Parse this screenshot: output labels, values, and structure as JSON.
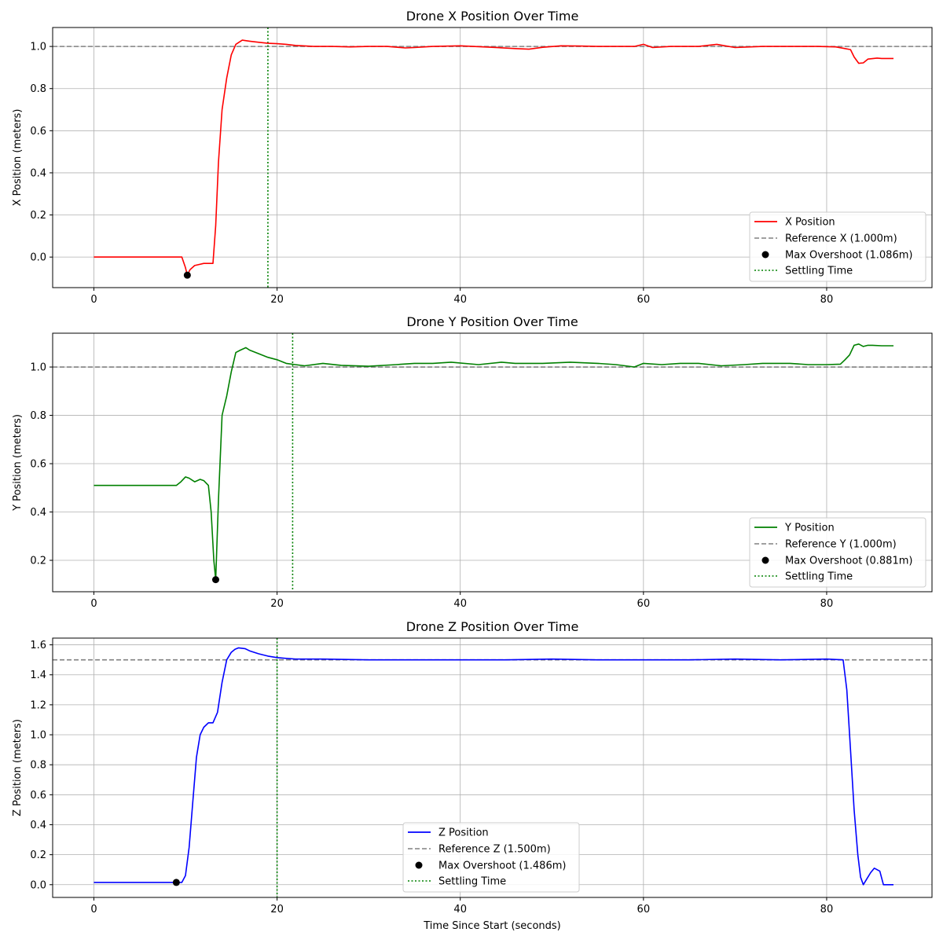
{
  "chart_data": [
    {
      "type": "line",
      "title": "Drone X Position Over Time",
      "ylabel": "X Position (meters)",
      "xlabel": "",
      "xlim": [
        -4.5,
        91.5
      ],
      "ylim": [
        -0.145,
        1.09
      ],
      "xticks": [
        0,
        20,
        40,
        60,
        80
      ],
      "yticks": [
        0.0,
        0.2,
        0.4,
        0.6,
        0.8,
        1.0
      ],
      "grid": true,
      "color": "#ff0000",
      "series_name": "X Position",
      "x": [
        0,
        9.0,
        9.6,
        10.0,
        10.2,
        10.5,
        11.0,
        12.0,
        13.0,
        13.3,
        13.6,
        14.0,
        14.5,
        15.0,
        15.5,
        16.2,
        17.0,
        18.0,
        19.0,
        20.0,
        21.0,
        22.0,
        24.0,
        26.0,
        28.0,
        30.0,
        32.0,
        34.0,
        35.0,
        37.0,
        40.0,
        43.0,
        46.0,
        47.5,
        49.0,
        51.0,
        53.0,
        55.0,
        57.0,
        59.0,
        60.0,
        61.0,
        63.0,
        66.0,
        68.0,
        70.0,
        73.0,
        76.0,
        79.0,
        81.0,
        82.0,
        82.6,
        83.0,
        83.5,
        84.0,
        84.5,
        85.5,
        86.0,
        87.3
      ],
      "values": [
        0.0,
        0.0,
        0.0,
        -0.05,
        -0.086,
        -0.06,
        -0.04,
        -0.03,
        -0.03,
        0.15,
        0.45,
        0.7,
        0.85,
        0.96,
        1.01,
        1.03,
        1.025,
        1.02,
        1.015,
        1.013,
        1.01,
        1.005,
        1.0,
        1.0,
        0.998,
        1.0,
        1.0,
        0.993,
        0.995,
        1.0,
        1.003,
        0.997,
        0.99,
        0.987,
        0.996,
        1.003,
        1.002,
        1.0,
        1.0,
        1.0,
        1.01,
        0.995,
        1.0,
        1.0,
        1.01,
        0.995,
        1.0,
        1.0,
        1.0,
        0.998,
        0.99,
        0.985,
        0.95,
        0.92,
        0.922,
        0.94,
        0.945,
        0.943,
        0.943
      ],
      "reference_y": 1.0,
      "settling_time": 19.0,
      "overshoot_point": [
        10.2,
        -0.086
      ],
      "legend_position": "lower right",
      "legend": [
        "X Position",
        "Reference X (1.000m)",
        "Max Overshoot (1.086m)",
        "Settling Time"
      ]
    },
    {
      "type": "line",
      "title": "Drone Y Position Over Time",
      "ylabel": "Y Position (meters)",
      "xlabel": "",
      "xlim": [
        -4.5,
        91.5
      ],
      "ylim": [
        0.07,
        1.14
      ],
      "xticks": [
        0,
        20,
        40,
        60,
        80
      ],
      "yticks": [
        0.2,
        0.4,
        0.6,
        0.8,
        1.0
      ],
      "grid": true,
      "color": "#008000",
      "series_name": "Y Position",
      "x": [
        0,
        9.0,
        9.5,
        10.0,
        10.4,
        11.0,
        11.6,
        12.0,
        12.5,
        12.8,
        13.1,
        13.3,
        13.6,
        14.0,
        14.5,
        15.0,
        15.5,
        16.0,
        16.6,
        17.0,
        18.0,
        19.0,
        20.0,
        21.0,
        22.0,
        23.0,
        25.0,
        27.0,
        30.0,
        33.0,
        35.0,
        37.0,
        39.0,
        42.0,
        44.5,
        46.0,
        49.0,
        52.0,
        55.0,
        57.0,
        59.0,
        60.0,
        62.0,
        64.0,
        66.0,
        68.5,
        71.0,
        73.0,
        76.0,
        78.0,
        80.0,
        81.5,
        82.0,
        82.5,
        83.0,
        83.5,
        84.0,
        84.5,
        85.0,
        86.0,
        87.3
      ],
      "values": [
        0.51,
        0.51,
        0.525,
        0.545,
        0.54,
        0.525,
        0.535,
        0.53,
        0.51,
        0.4,
        0.2,
        0.12,
        0.45,
        0.8,
        0.88,
        0.98,
        1.06,
        1.07,
        1.08,
        1.07,
        1.055,
        1.04,
        1.03,
        1.015,
        1.01,
        1.005,
        1.015,
        1.007,
        1.003,
        1.01,
        1.015,
        1.015,
        1.02,
        1.01,
        1.02,
        1.015,
        1.015,
        1.02,
        1.015,
        1.01,
        1.0,
        1.015,
        1.01,
        1.015,
        1.015,
        1.005,
        1.01,
        1.015,
        1.015,
        1.01,
        1.01,
        1.012,
        1.03,
        1.05,
        1.09,
        1.095,
        1.085,
        1.09,
        1.09,
        1.088,
        1.088
      ],
      "reference_y": 1.0,
      "settling_time": 21.7,
      "overshoot_point": [
        13.3,
        0.12
      ],
      "legend_position": "lower right",
      "legend": [
        "Y Position",
        "Reference Y (1.000m)",
        "Max Overshoot (0.881m)",
        "Settling Time"
      ]
    },
    {
      "type": "line",
      "title": "Drone Z Position Over Time",
      "ylabel": "Z Position (meters)",
      "xlabel": "Time Since Start (seconds)",
      "xlim": [
        -4.5,
        91.5
      ],
      "ylim": [
        -0.085,
        1.645
      ],
      "xticks": [
        0,
        20,
        40,
        60,
        80
      ],
      "yticks": [
        0.0,
        0.2,
        0.4,
        0.6,
        0.8,
        1.0,
        1.2,
        1.4,
        1.6
      ],
      "grid": true,
      "color": "#0000ff",
      "series_name": "Z Position",
      "x": [
        0,
        9.0,
        9.6,
        10.0,
        10.4,
        10.8,
        11.2,
        11.6,
        12.0,
        12.5,
        13.0,
        13.5,
        14.0,
        14.5,
        15.0,
        15.4,
        15.8,
        16.5,
        17.0,
        18.0,
        19.0,
        20.0,
        21.0,
        22.0,
        25.0,
        30.0,
        35.0,
        40.0,
        45.0,
        50.0,
        55.0,
        60.0,
        65.0,
        70.0,
        75.0,
        80.0,
        81.8,
        82.2,
        82.6,
        83.0,
        83.4,
        83.7,
        84.0,
        84.4,
        84.8,
        85.2,
        85.5,
        85.8,
        86.2,
        87.3
      ],
      "values": [
        0.015,
        0.015,
        0.015,
        0.06,
        0.25,
        0.55,
        0.85,
        1.0,
        1.05,
        1.08,
        1.08,
        1.15,
        1.35,
        1.5,
        1.55,
        1.57,
        1.58,
        1.575,
        1.56,
        1.54,
        1.525,
        1.515,
        1.51,
        1.505,
        1.505,
        1.5,
        1.5,
        1.5,
        1.5,
        1.505,
        1.5,
        1.5,
        1.5,
        1.505,
        1.5,
        1.505,
        1.5,
        1.3,
        0.9,
        0.5,
        0.2,
        0.05,
        0.0,
        0.04,
        0.08,
        0.11,
        0.1,
        0.09,
        0.0,
        0.0
      ],
      "reference_y": 1.5,
      "settling_time": 20.0,
      "overshoot_point": [
        9.0,
        0.015
      ],
      "legend_position": "lower center",
      "legend": [
        "Z Position",
        "Reference Z (1.500m)",
        "Max Overshoot (1.486m)",
        "Settling Time"
      ]
    }
  ]
}
